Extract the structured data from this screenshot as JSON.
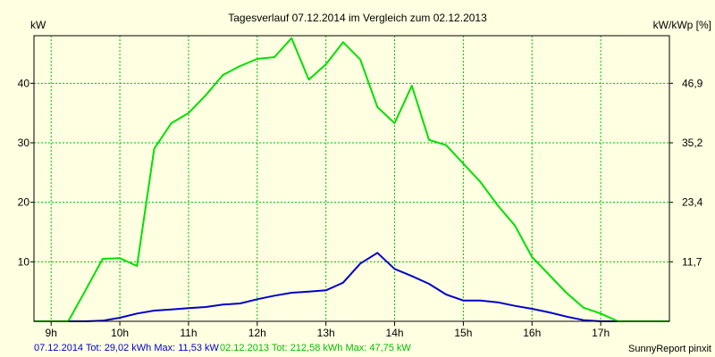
{
  "chart_data": {
    "type": "line",
    "title": "Tagesverlauf 07.12.2014 im Vergleich zum 02.12.2013",
    "ylabel_left": "kW",
    "ylabel_right": "kW/kWp [%]",
    "x_ticks": [
      "9h",
      "10h",
      "11h",
      "12h",
      "13h",
      "14h",
      "15h",
      "16h",
      "17h"
    ],
    "x_tick_values": [
      9,
      10,
      11,
      12,
      13,
      14,
      15,
      16,
      17
    ],
    "xlim": [
      8.75,
      18.0
    ],
    "ylim_left": [
      0,
      48
    ],
    "y_ticks_left": [
      10,
      20,
      30,
      40
    ],
    "y_ticks_right": [
      "11,7",
      "23,4",
      "35,2",
      "46,9"
    ],
    "y_ticks_right_at_left": [
      10,
      20,
      30,
      40
    ],
    "grid": true,
    "series": [
      {
        "name": "07.12.2014 Tot: 29,02 kWh Max: 11,53 kW",
        "color": "#0000cc",
        "x": [
          8.75,
          9.0,
          9.25,
          9.5,
          9.75,
          10.0,
          10.25,
          10.5,
          10.75,
          11.0,
          11.25,
          11.5,
          11.75,
          12.0,
          12.25,
          12.5,
          12.75,
          13.0,
          13.25,
          13.5,
          13.75,
          14.0,
          14.25,
          14.5,
          14.75,
          15.0,
          15.25,
          15.5,
          15.75,
          16.0,
          16.25,
          16.5,
          16.75,
          17.0,
          17.25,
          17.5,
          17.75,
          18.0
        ],
        "values": [
          0,
          0,
          0,
          0,
          0.1,
          0.6,
          1.3,
          1.8,
          2.0,
          2.2,
          2.4,
          2.8,
          3.0,
          3.7,
          4.3,
          4.8,
          5.0,
          5.2,
          6.5,
          9.7,
          11.5,
          8.8,
          7.6,
          6.3,
          4.5,
          3.5,
          3.5,
          3.2,
          2.6,
          2.1,
          1.5,
          0.8,
          0.2,
          0,
          0,
          0,
          0,
          0
        ]
      },
      {
        "name": "02.12.2013 Tot: 212,58 kWh Max: 47,75 kW",
        "color": "#00e000",
        "x": [
          8.75,
          9.0,
          9.25,
          9.5,
          9.75,
          10.0,
          10.25,
          10.5,
          10.75,
          11.0,
          11.25,
          11.5,
          11.75,
          12.0,
          12.25,
          12.5,
          12.75,
          13.0,
          13.25,
          13.5,
          13.75,
          14.0,
          14.25,
          14.5,
          14.75,
          15.0,
          15.25,
          15.5,
          15.75,
          16.0,
          16.25,
          16.5,
          16.75,
          17.0,
          17.25,
          17.5,
          17.75,
          18.0
        ],
        "values": [
          0,
          0,
          0,
          5.2,
          10.5,
          10.6,
          9.3,
          29.0,
          33.3,
          35.0,
          38.0,
          41.4,
          42.9,
          44.1,
          44.4,
          47.6,
          40.6,
          43.2,
          46.9,
          44.0,
          36.0,
          33.3,
          39.6,
          30.5,
          29.6,
          26.5,
          23.4,
          19.5,
          16.1,
          10.8,
          7.8,
          4.8,
          2.3,
          1.3,
          0.0,
          0,
          0,
          0
        ]
      }
    ],
    "footer_left": "07.12.2014 Tot: 29,02 kWh Max: 11,53 kW",
    "footer_middle": "02.12.2013 Tot: 212,58 kWh Max: 47,75 kW",
    "footer_right": "SunnyReport pinxit"
  },
  "colors": {
    "background": "#ffffe1",
    "grid": "#00c000"
  }
}
